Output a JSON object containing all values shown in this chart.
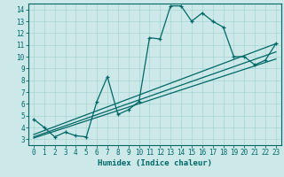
{
  "xlabel": "Humidex (Indice chaleur)",
  "bg_color": "#cce8e8",
  "grid_color": "#a8d4d4",
  "line_color": "#006868",
  "xlim": [
    -0.5,
    23.5
  ],
  "ylim": [
    2.5,
    14.5
  ],
  "xticks": [
    0,
    1,
    2,
    3,
    4,
    5,
    6,
    7,
    8,
    9,
    10,
    11,
    12,
    13,
    14,
    15,
    16,
    17,
    18,
    19,
    20,
    21,
    22,
    23
  ],
  "yticks": [
    3,
    4,
    5,
    6,
    7,
    8,
    9,
    10,
    11,
    12,
    13,
    14
  ],
  "curve_x": [
    0,
    1,
    2,
    3,
    4,
    5,
    6,
    7,
    8,
    9,
    10,
    11,
    12,
    13,
    14,
    15,
    16,
    17,
    18,
    19,
    20,
    21,
    22,
    23
  ],
  "curve_y": [
    4.7,
    4.0,
    3.2,
    3.6,
    3.3,
    3.2,
    6.2,
    8.3,
    5.1,
    5.5,
    6.2,
    11.6,
    11.5,
    14.3,
    14.3,
    13.0,
    13.7,
    13.0,
    12.5,
    10.0,
    10.0,
    9.3,
    9.7,
    11.1
  ],
  "trend1_x": [
    0,
    23
  ],
  "trend1_y": [
    3.1,
    9.8
  ],
  "trend2_x": [
    0,
    23
  ],
  "trend2_y": [
    3.2,
    10.4
  ],
  "trend3_x": [
    0,
    23
  ],
  "trend3_y": [
    3.4,
    11.1
  ]
}
